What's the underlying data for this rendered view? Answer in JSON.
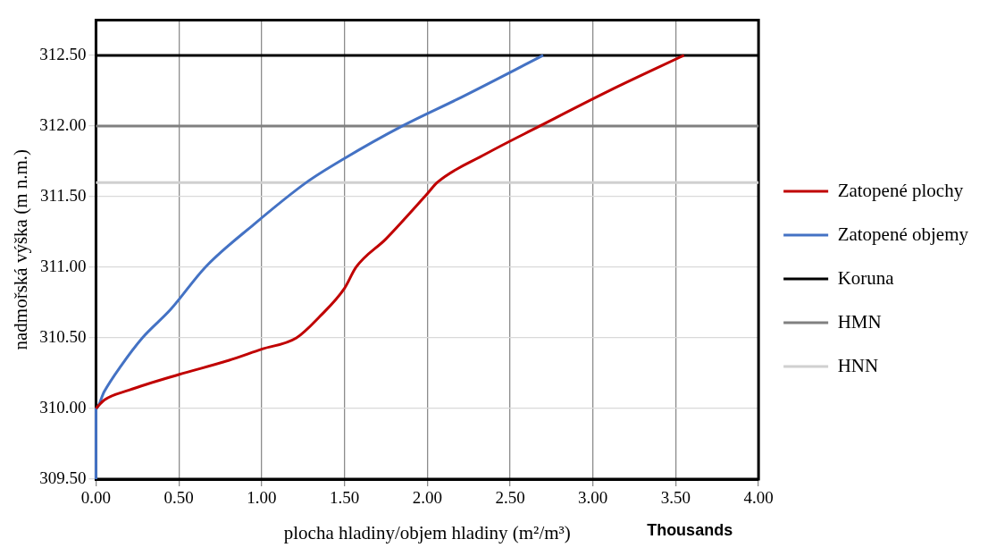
{
  "chart_data": {
    "type": "line",
    "xlabel": "plocha hladiny/objem hladiny (m²/m³)",
    "ylabel": "nadmořská výška (m n.m.)",
    "annotations": [
      "Thousands"
    ],
    "xlim": [
      0,
      4
    ],
    "ylim": [
      309.5,
      312.75
    ],
    "xticks": [
      {
        "value": 0,
        "label": "0.00"
      },
      {
        "value": 0.5,
        "label": "0.50"
      },
      {
        "value": 1,
        "label": "1.00"
      },
      {
        "value": 1.5,
        "label": "1.50"
      },
      {
        "value": 2,
        "label": "2.00"
      },
      {
        "value": 2.5,
        "label": "2.50"
      },
      {
        "value": 3,
        "label": "3.00"
      },
      {
        "value": 3.5,
        "label": "3.50"
      },
      {
        "value": 4,
        "label": "4.00"
      }
    ],
    "yticks": [
      {
        "value": 309.5,
        "label": "309.50"
      },
      {
        "value": 310,
        "label": "310.00"
      },
      {
        "value": 310.5,
        "label": "310.50"
      },
      {
        "value": 311,
        "label": "311.00"
      },
      {
        "value": 311.5,
        "label": "311.50"
      },
      {
        "value": 312,
        "label": "312.00"
      },
      {
        "value": 312.5,
        "label": "312.50"
      }
    ],
    "grid": true,
    "legend": "right",
    "marker": "none",
    "line_style": "solid",
    "series": [
      {
        "name": "Zatopené plochy",
        "color": "#c00000",
        "x": [
          0,
          0.05,
          0.2,
          0.5,
          0.8,
          1.0,
          1.21,
          1.35,
          1.5,
          1.57,
          1.75,
          2.0,
          2.06,
          2.35,
          2.68,
          3.1,
          3.55
        ],
        "values": [
          310,
          310.06,
          310.13,
          310.24,
          310.34,
          310.42,
          310.5,
          310.65,
          310.85,
          311.0,
          311.2,
          311.52,
          311.6,
          311.8,
          312.0,
          312.25,
          312.5
        ]
      },
      {
        "name": "Zatopené objemy",
        "color": "#4472c4",
        "x": [
          0,
          0,
          0.05,
          0.15,
          0.28,
          0.45,
          0.66,
          0.95,
          1.27,
          1.5,
          1.85,
          2.2,
          2.7
        ],
        "values": [
          309.5,
          310,
          310.12,
          310.3,
          310.5,
          310.7,
          311.0,
          311.3,
          311.6,
          311.77,
          312.0,
          312.2,
          312.5
        ]
      },
      {
        "name": "Koruna",
        "color": "#000000",
        "x": [
          0,
          4
        ],
        "values": [
          312.5,
          312.5
        ]
      },
      {
        "name": "HMN",
        "color": "#808080",
        "x": [
          0,
          4
        ],
        "values": [
          312,
          312
        ]
      },
      {
        "name": "HNN",
        "color": "#d0d0d0",
        "x": [
          0,
          4
        ],
        "values": [
          311.6,
          311.6
        ]
      }
    ]
  }
}
